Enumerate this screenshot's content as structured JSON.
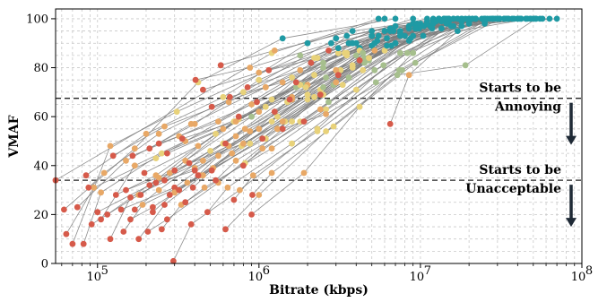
{
  "chart_data": {
    "type": "line",
    "xlabel": "Bitrate (kbps)",
    "ylabel": "VMAF",
    "xscale": "log",
    "xlim": [
      55000,
      100000000
    ],
    "ylim": [
      0,
      104
    ],
    "x_ticks": [
      {
        "value": 100000,
        "base": "10",
        "exp": "5"
      },
      {
        "value": 1000000,
        "base": "10",
        "exp": "6"
      },
      {
        "value": 10000000,
        "base": "10",
        "exp": "7"
      },
      {
        "value": 100000000,
        "base": "10",
        "exp": "8"
      }
    ],
    "y_ticks": [
      0,
      20,
      40,
      60,
      80,
      100
    ],
    "grid": true,
    "palette": [
      "#d65a4a",
      "#e8a866",
      "#e8d27a",
      "#a6bf8d",
      "#1f9aa4"
    ],
    "thresholds": [
      {
        "value": 67.5,
        "label_line1": "Starts to be",
        "label_line2": "Annoying"
      },
      {
        "value": 34,
        "label_line1": "Starts to be",
        "label_line2": "Unacceptable"
      }
    ],
    "series": [
      {
        "x": [
          55000,
          1200000,
          5500000
        ],
        "y": [
          34,
          86,
          100
        ]
      },
      {
        "x": [
          62000,
          170000,
          420000,
          1400000,
          7000000
        ],
        "y": [
          22,
          47,
          74,
          92,
          100
        ]
      },
      {
        "x": [
          64000,
          95000,
          230000,
          2500000,
          12000000
        ],
        "y": [
          12,
          31,
          43,
          82,
          100
        ]
      },
      {
        "x": [
          70000,
          120000,
          310000,
          1800000,
          9000000
        ],
        "y": [
          8,
          48,
          62,
          85,
          100
        ]
      },
      {
        "x": [
          75000,
          150000,
          400000,
          1000000,
          5000000,
          20000000
        ],
        "y": [
          23,
          42,
          57,
          75,
          95,
          100
        ]
      },
      {
        "x": [
          82000,
          105000,
          250000,
          900000,
          3500000,
          14000000
        ],
        "y": [
          8,
          29,
          45,
          60,
          93,
          100
        ]
      },
      {
        "x": [
          85000,
          200000,
          600000,
          2000000,
          6000000
        ],
        "y": [
          36,
          53,
          68,
          90,
          100
        ]
      },
      {
        "x": [
          88000,
          110000,
          240000,
          800000,
          3000000,
          11000000
        ],
        "y": [
          31,
          37,
          53,
          70,
          92,
          100
        ]
      },
      {
        "x": [
          92000,
          180000,
          500000,
          1600000,
          5000000,
          16000000
        ],
        "y": [
          16,
          28,
          46,
          67,
          89,
          100
        ]
      },
      {
        "x": [
          100000,
          210000,
          720000,
          2400000,
          8000000,
          25000000
        ],
        "y": [
          21,
          32,
          52,
          71,
          93,
          100
        ]
      },
      {
        "x": [
          105000,
          170000,
          350000,
          1100000,
          3800000,
          13000000
        ],
        "y": [
          18,
          40,
          50,
          64,
          90,
          100
        ]
      },
      {
        "x": [
          115000,
          240000,
          540000,
          1700000,
          6000000,
          20000000
        ],
        "y": [
          20,
          35,
          53,
          72,
          95,
          100
        ]
      },
      {
        "x": [
          120000,
          160000,
          400000,
          1200000,
          4000000,
          14000000
        ],
        "y": [
          10,
          27,
          39,
          58,
          85,
          100
        ]
      },
      {
        "x": [
          125000,
          260000,
          650000,
          2200000,
          7000000,
          30000000
        ],
        "y": [
          44,
          56,
          66,
          84,
          97,
          100
        ]
      },
      {
        "x": [
          130000,
          230000,
          700000,
          2500000,
          9000000,
          35000000
        ],
        "y": [
          28,
          36,
          58,
          80,
          98,
          100
        ]
      },
      {
        "x": [
          140000,
          300000,
          880000,
          3000000,
          10000000,
          40000000
        ],
        "y": [
          22,
          31,
          54,
          79,
          98,
          100
        ]
      },
      {
        "x": [
          145000,
          190000,
          450000,
          1300000,
          4500000,
          15000000
        ],
        "y": [
          13,
          24,
          36,
          55,
          82,
          100
        ]
      },
      {
        "x": [
          150000,
          280000,
          750000,
          2600000,
          8500000,
          28000000
        ],
        "y": [
          30,
          37,
          59,
          76,
          97,
          100
        ]
      },
      {
        "x": [
          160000,
          220000,
          520000,
          1500000,
          5000000,
          18000000
        ],
        "y": [
          18,
          23,
          39,
          66,
          93,
          100
        ]
      },
      {
        "x": [
          165000,
          320000,
          900000,
          3100000,
          11000000,
          42000000
        ],
        "y": [
          44,
          52,
          65,
          86,
          99,
          100
        ]
      },
      {
        "x": [
          170000,
          240000,
          600000,
          1900000,
          6500000,
          22000000
        ],
        "y": [
          22,
          30,
          49,
          73,
          96,
          100
        ]
      },
      {
        "x": [
          180000,
          260000,
          680000,
          2200000,
          7500000,
          27000000
        ],
        "y": [
          10,
          24,
          45,
          68,
          94,
          100
        ]
      },
      {
        "x": [
          185000,
          350000,
          1000000,
          3500000,
          12000000,
          45000000
        ],
        "y": [
          28,
          42,
          62,
          85,
          99,
          100
        ]
      },
      {
        "x": [
          195000,
          420000,
          1200000,
          4200000,
          14000000,
          52000000
        ],
        "y": [
          37,
          48,
          67,
          88,
          100,
          100
        ]
      },
      {
        "x": [
          205000,
          270000,
          560000,
          1600000,
          5200000,
          17000000
        ],
        "y": [
          13,
          18,
          33,
          58,
          90,
          100
        ]
      },
      {
        "x": [
          210000,
          380000,
          1100000,
          3800000,
          13000000,
          48000000
        ],
        "y": [
          47,
          57,
          72,
          90,
          100,
          100
        ]
      },
      {
        "x": [
          220000,
          300000,
          780000,
          2500000,
          8500000,
          30000000
        ],
        "y": [
          21,
          29,
          48,
          72,
          96,
          100
        ]
      },
      {
        "x": [
          230000,
          450000,
          1300000,
          4500000,
          15000000
        ],
        "y": [
          33,
          42,
          60,
          84,
          100
        ]
      },
      {
        "x": [
          240000,
          560000,
          1600000,
          5500000,
          19000000
        ],
        "y": [
          49,
          58,
          76,
          93,
          100
        ]
      },
      {
        "x": [
          250000,
          330000,
          820000,
          2700000,
          9000000,
          33000000
        ],
        "y": [
          14,
          24,
          41,
          66,
          93,
          100
        ]
      },
      {
        "x": [
          260000,
          400000,
          1000000,
          3200000,
          11000000,
          40000000
        ],
        "y": [
          34,
          38,
          55,
          79,
          98,
          100
        ]
      },
      {
        "x": [
          270000,
          600000,
          1800000,
          6200000,
          21000000
        ],
        "y": [
          45,
          55,
          73,
          92,
          100
        ]
      },
      {
        "x": [
          280000,
          360000,
          880000,
          2900000,
          9500000,
          35000000
        ],
        "y": [
          28,
          33,
          49,
          73,
          96,
          100
        ]
      },
      {
        "x": [
          295000,
          380000,
          760000,
          2300000,
          7500000,
          25000000
        ],
        "y": [
          1,
          16,
          30,
          55,
          86,
          100
        ]
      },
      {
        "x": [
          300000,
          650000,
          2000000,
          7000000,
          24000000
        ],
        "y": [
          38,
          48,
          67,
          90,
          100
        ]
      },
      {
        "x": [
          320000,
          430000,
          1100000,
          3600000,
          12000000,
          45000000
        ],
        "y": [
          30,
          36,
          51,
          76,
          98,
          100
        ]
      },
      {
        "x": [
          335000,
          720000,
          2200000,
          7500000,
          26000000
        ],
        "y": [
          51,
          58,
          77,
          95,
          100
        ]
      },
      {
        "x": [
          350000,
          460000,
          1200000,
          4000000,
          13500000,
          50000000
        ],
        "y": [
          25,
          31,
          47,
          71,
          96,
          100
        ]
      },
      {
        "x": [
          370000,
          800000,
          2500000,
          8500000,
          29000000
        ],
        "y": [
          41,
          49,
          69,
          91,
          100
        ]
      },
      {
        "x": [
          390000,
          510000,
          1300000,
          4400000,
          15000000,
          55000000
        ],
        "y": [
          31,
          38,
          55,
          79,
          99,
          100
        ]
      },
      {
        "x": [
          405000,
          880000,
          2800000,
          9500000,
          33000000
        ],
        "y": [
          75,
          80,
          90,
          98,
          100
        ]
      },
      {
        "x": [
          420000,
          560000,
          1450000,
          4800000,
          16000000
        ],
        "y": [
          36,
          44,
          58,
          83,
          100
        ]
      },
      {
        "x": [
          450000,
          1000000,
          3100000,
          10500000,
          37000000
        ],
        "y": [
          71,
          78,
          88,
          97,
          100
        ]
      },
      {
        "x": [
          480000,
          640000,
          1600000,
          5300000,
          18000000
        ],
        "y": [
          21,
          31,
          49,
          74,
          97
        ]
      },
      {
        "x": [
          510000,
          1100000,
          3400000,
          11500000,
          41000000
        ],
        "y": [
          64,
          72,
          86,
          97,
          100
        ]
      },
      {
        "x": [
          540000,
          720000,
          1800000,
          5900000,
          20000000
        ],
        "y": [
          34,
          42,
          58,
          81,
          99
        ]
      },
      {
        "x": [
          580000,
          1250000,
          3800000,
          13000000,
          46000000
        ],
        "y": [
          81,
          87,
          95,
          100,
          100
        ]
      },
      {
        "x": [
          620000,
          820000,
          2000000,
          6600000,
          22000000
        ],
        "y": [
          49,
          55,
          69,
          89,
          100
        ]
      },
      {
        "x": [
          660000,
          1400000,
          4200000,
          14500000,
          51000000
        ],
        "y": [
          68,
          74,
          87,
          98,
          100
        ]
      },
      {
        "x": [
          700000,
          920000,
          2300000,
          7400000,
          25000000
        ],
        "y": [
          26,
          36,
          54,
          79,
          99
        ]
      },
      {
        "x": [
          750000,
          1600000,
          4800000,
          16000000,
          57000000
        ],
        "y": [
          60,
          68,
          84,
          97,
          100
        ]
      },
      {
        "x": [
          800000,
          1050000,
          2600000,
          8300000,
          28000000
        ],
        "y": [
          40,
          47,
          63,
          86,
          100
        ]
      },
      {
        "x": [
          850000,
          1800000,
          5400000,
          18000000,
          63000000
        ],
        "y": [
          72,
          79,
          91,
          99,
          100
        ]
      },
      {
        "x": [
          910000,
          1200000,
          2900000,
          9300000,
          31000000
        ],
        "y": [
          28,
          37,
          56,
          82,
          100
        ]
      },
      {
        "x": [
          970000,
          2000000,
          6000000,
          20000000,
          70000000
        ],
        "y": [
          66,
          73,
          87,
          98,
          100
        ]
      },
      {
        "x": [
          1050000,
          1400000,
          3300000,
          10400000,
          34000000
        ],
        "y": [
          51,
          58,
          73,
          93,
          100
        ]
      },
      {
        "x": [
          1150000,
          2300000,
          6800000,
          22000000
        ],
        "y": [
          79,
          84,
          95,
          100
        ]
      },
      {
        "x": [
          1250000,
          1600000,
          3800000,
          11800000
        ],
        "y": [
          62,
          67,
          80,
          96
        ]
      },
      {
        "x": [
          1400000,
          2600000,
          7700000,
          25000000
        ],
        "y": [
          55,
          61,
          79,
          98
        ]
      },
      {
        "x": [
          1550000,
          1950000,
          4400000,
          13500000
        ],
        "y": [
          67,
          72,
          86,
          99
        ]
      },
      {
        "x": [
          1700000,
          3000000,
          8700000,
          28000000
        ],
        "y": [
          74,
          79,
          92,
          100
        ]
      },
      {
        "x": [
          1900000,
          2400000,
          5200000,
          15500000
        ],
        "y": [
          58,
          63,
          79,
          97
        ]
      },
      {
        "x": [
          2100000,
          3500000,
          9800000,
          31000000
        ],
        "y": [
          82,
          86,
          96,
          100
        ]
      },
      {
        "x": [
          2400000,
          3000000,
          6200000,
          18000000
        ],
        "y": [
          69,
          74,
          89,
          100
        ]
      },
      {
        "x": [
          2700000,
          4000000,
          11000000,
          35000000
        ],
        "y": [
          87,
          90,
          98,
          100
        ]
      },
      {
        "x": [
          3100000,
          3800000,
          7500000,
          21000000
        ],
        "y": [
          77,
          81,
          93,
          100
        ]
      },
      {
        "x": [
          3600000,
          5000000,
          12500000,
          38000000
        ],
        "y": [
          90,
          93,
          99,
          100
        ]
      },
      {
        "x": [
          4200000,
          5200000,
          9300000,
          25000000
        ],
        "y": [
          83,
          87,
          96,
          100
        ]
      },
      {
        "x": [
          5000000,
          6500000,
          14500000,
          42000000
        ],
        "y": [
          93,
          95,
          100,
          100
        ]
      },
      {
        "x": [
          6500000,
          8500000,
          17000000,
          48000000
        ],
        "y": [
          57,
          77,
          95,
          100
        ]
      },
      {
        "x": [
          900000,
          1900000,
          4200000,
          9000000,
          17000000
        ],
        "y": [
          20,
          37,
          64,
          86,
          100
        ]
      },
      {
        "x": [
          620000,
          1000000,
          2600000,
          7200000,
          19000000,
          52000000
        ],
        "y": [
          14,
          28,
          54,
          77,
          81,
          100
        ]
      }
    ]
  }
}
